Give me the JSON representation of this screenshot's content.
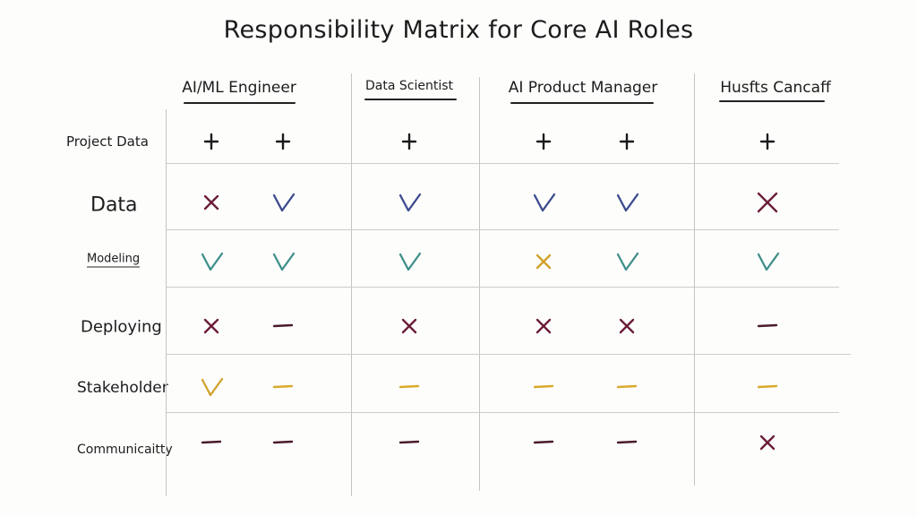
{
  "title": "Responsibility Matrix for Core AI Roles",
  "columns": [
    {
      "label": "AI/ML Engineer",
      "underlined": true
    },
    {
      "label": "Data Scientist",
      "underlined": true
    },
    {
      "label": "AI Product Manager",
      "underlined": true
    },
    {
      "label": "Husfts Cancaff",
      "underlined": true
    }
  ],
  "rows": [
    {
      "label": "Project Data"
    },
    {
      "label": "Data"
    },
    {
      "label": "Modeling"
    },
    {
      "label": "Deploying"
    },
    {
      "label": "Stakeholder"
    },
    {
      "label": "Communicaitty"
    }
  ],
  "colors": {
    "plus": "#1a1a1a",
    "cross_dark": "#6b1d3a",
    "check_blue": "#3b4a8c",
    "check_teal": "#3f8f8a",
    "cross_amber": "#d1a12a",
    "dash_amber": "#d9ab2c",
    "dash_dark": "#4a1a2c",
    "grid": "#c4c4c4"
  },
  "cells": [
    [
      {
        "mark": "plus",
        "color": "plus"
      },
      {
        "mark": "plus",
        "color": "plus"
      },
      {
        "mark": "plus",
        "color": "plus"
      },
      {
        "mark": "plus",
        "color": "plus"
      },
      {
        "mark": "plus",
        "color": "plus"
      },
      {
        "mark": "plus",
        "color": "plus"
      }
    ],
    [
      {
        "mark": "cross",
        "color": "cross_dark"
      },
      {
        "mark": "check",
        "color": "check_blue"
      },
      {
        "mark": "check",
        "color": "check_blue"
      },
      {
        "mark": "check",
        "color": "check_blue"
      },
      {
        "mark": "check",
        "color": "check_blue"
      },
      {
        "mark": "cross",
        "color": "cross_dark"
      }
    ],
    [
      {
        "mark": "check",
        "color": "check_teal"
      },
      {
        "mark": "check",
        "color": "check_teal"
      },
      {
        "mark": "check",
        "color": "check_teal"
      },
      {
        "mark": "cross",
        "color": "cross_amber"
      },
      {
        "mark": "check",
        "color": "check_teal"
      },
      {
        "mark": "check",
        "color": "check_teal"
      }
    ],
    [
      {
        "mark": "cross",
        "color": "cross_dark"
      },
      {
        "mark": "dash",
        "color": "dash_dark"
      },
      {
        "mark": "cross",
        "color": "cross_dark"
      },
      {
        "mark": "cross",
        "color": "cross_dark"
      },
      {
        "mark": "cross",
        "color": "cross_dark"
      },
      {
        "mark": "dash",
        "color": "dash_dark"
      }
    ],
    [
      {
        "mark": "check",
        "color": "cross_amber"
      },
      {
        "mark": "dash",
        "color": "dash_amber"
      },
      {
        "mark": "dash",
        "color": "dash_amber"
      },
      {
        "mark": "dash",
        "color": "dash_amber"
      },
      {
        "mark": "dash",
        "color": "dash_amber"
      },
      {
        "mark": "dash",
        "color": "dash_amber"
      }
    ],
    [
      {
        "mark": "dash",
        "color": "dash_dark"
      },
      {
        "mark": "dash",
        "color": "dash_dark"
      },
      {
        "mark": "dash",
        "color": "dash_dark"
      },
      {
        "mark": "dash",
        "color": "dash_dark"
      },
      {
        "mark": "dash",
        "color": "dash_dark"
      },
      {
        "mark": "cross",
        "color": "cross_dark"
      }
    ]
  ]
}
